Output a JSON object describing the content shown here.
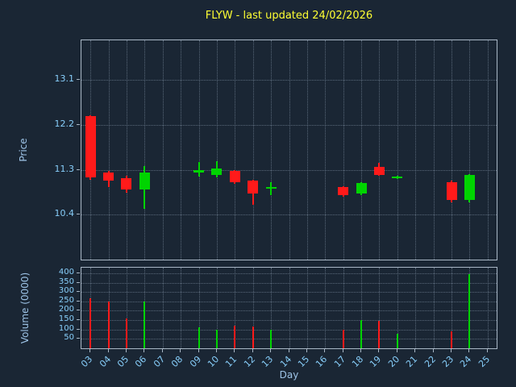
{
  "title": "FLYW - last updated 24/02/2026",
  "colors": {
    "background": "#1a2634",
    "title": "#ffff33",
    "tick_labels": "#87cefa",
    "axis_labels": "#9dc3e6",
    "spine": "#a9b7c6",
    "grid": "rgba(165,185,205,0.45)",
    "up": "#00d400",
    "down": "#ff1a1a"
  },
  "chart_data": {
    "type": "candlestick+volume",
    "title": "FLYW - last updated 24/02/2026",
    "xlabel": "Day",
    "price_ylabel": "Price",
    "volume_ylabel": "Volume (0000)",
    "legend": "none",
    "grid": "dotted, both axes",
    "xlim": [
      2.5,
      25.5
    ],
    "price_ylim": [
      9.5,
      13.9
    ],
    "volume_ylim": [
      0,
      430
    ],
    "x_ticks": [
      "03",
      "04",
      "05",
      "06",
      "07",
      "08",
      "09",
      "10",
      "11",
      "12",
      "13",
      "14",
      "15",
      "16",
      "17",
      "18",
      "19",
      "20",
      "21",
      "22",
      "23",
      "24",
      "25"
    ],
    "price_ticks": [
      10.4,
      11.3,
      12.2,
      13.1
    ],
    "volume_ticks": [
      50,
      100,
      150,
      200,
      250,
      300,
      350,
      400
    ],
    "candles": [
      {
        "day": 3,
        "open": 12.38,
        "high": 12.4,
        "low": 11.1,
        "close": 11.15,
        "volume": 265
      },
      {
        "day": 4,
        "open": 11.25,
        "high": 11.28,
        "low": 10.95,
        "close": 11.08,
        "volume": 250
      },
      {
        "day": 5,
        "open": 11.13,
        "high": 11.18,
        "low": 10.85,
        "close": 10.9,
        "volume": 160
      },
      {
        "day": 6,
        "open": 10.9,
        "high": 11.38,
        "low": 10.52,
        "close": 11.25,
        "volume": 250
      },
      {
        "day": 9,
        "open": 11.24,
        "high": 11.45,
        "low": 11.16,
        "close": 11.3,
        "volume": 110
      },
      {
        "day": 10,
        "open": 11.2,
        "high": 11.48,
        "low": 11.15,
        "close": 11.32,
        "volume": 100
      },
      {
        "day": 11,
        "open": 11.28,
        "high": 11.3,
        "low": 11.02,
        "close": 11.05,
        "volume": 120
      },
      {
        "day": 12,
        "open": 11.08,
        "high": 11.1,
        "low": 10.6,
        "close": 10.82,
        "volume": 115
      },
      {
        "day": 13,
        "open": 10.93,
        "high": 11.05,
        "low": 10.8,
        "close": 10.96,
        "volume": 100
      },
      {
        "day": 17,
        "open": 10.95,
        "high": 10.98,
        "low": 10.76,
        "close": 10.8,
        "volume": 100
      },
      {
        "day": 18,
        "open": 10.82,
        "high": 11.06,
        "low": 10.8,
        "close": 11.04,
        "volume": 150
      },
      {
        "day": 19,
        "open": 11.36,
        "high": 11.44,
        "low": 11.18,
        "close": 11.2,
        "volume": 148
      },
      {
        "day": 20,
        "open": 11.13,
        "high": 11.18,
        "low": 11.11,
        "close": 11.17,
        "volume": 78
      },
      {
        "day": 23,
        "open": 11.05,
        "high": 11.08,
        "low": 10.65,
        "close": 10.7,
        "volume": 90
      },
      {
        "day": 24,
        "open": 10.7,
        "high": 11.22,
        "low": 10.65,
        "close": 11.2,
        "volume": 395
      }
    ]
  }
}
